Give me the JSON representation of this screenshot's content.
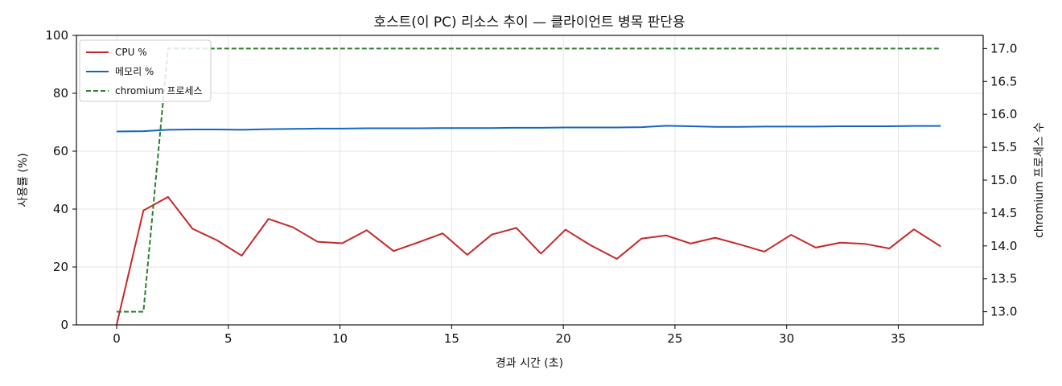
{
  "chart_data": {
    "type": "line",
    "title": "호스트(이 PC) 리소스 추이 — 클라이언트 병목 판단용",
    "xlabel": "경과 시간 (초)",
    "ylabel": "사용률 (%)",
    "y2label": "chromium 프로세스 수",
    "xlim": [
      -1.8,
      38.8
    ],
    "ylim": [
      0,
      100
    ],
    "y2lim": [
      12.8,
      17.2
    ],
    "xticks": [
      0,
      5,
      10,
      15,
      20,
      25,
      30,
      35
    ],
    "yticks": [
      0,
      20,
      40,
      60,
      80,
      100
    ],
    "y2ticks": [
      13.0,
      13.5,
      14.0,
      14.5,
      15.0,
      15.5,
      16.0,
      16.5,
      17.0
    ],
    "grid": true,
    "legend_position": "top-left",
    "x": [
      0,
      1.2,
      2.3,
      3.4,
      4.5,
      5.6,
      6.8,
      7.9,
      9.0,
      10.1,
      11.2,
      12.4,
      13.5,
      14.6,
      15.7,
      16.8,
      17.9,
      19.0,
      20.1,
      21.2,
      22.4,
      23.5,
      24.6,
      25.7,
      26.8,
      27.9,
      29.0,
      30.2,
      31.3,
      32.4,
      33.5,
      34.6,
      35.7,
      36.9
    ],
    "series": [
      {
        "name": "CPU %",
        "axis": "left",
        "color": "#c62828",
        "dash": "solid",
        "values": [
          0,
          39.5,
          44.2,
          33.2,
          29.2,
          23.9,
          36.6,
          33.7,
          28.7,
          28.2,
          32.7,
          25.5,
          28.5,
          31.6,
          24.2,
          31.2,
          33.5,
          24.6,
          32.9,
          27.6,
          22.8,
          29.8,
          30.9,
          28.1,
          30.1,
          27.8,
          25.3,
          31.1,
          26.7,
          28.4,
          28.0,
          26.4,
          33.0,
          27.1
        ]
      },
      {
        "name": "메모리 %",
        "axis": "left",
        "color": "#1565c0",
        "dash": "solid",
        "values": [
          66.8,
          66.9,
          67.4,
          67.5,
          67.5,
          67.4,
          67.6,
          67.7,
          67.8,
          67.8,
          67.9,
          67.9,
          67.9,
          68.0,
          68.0,
          68.0,
          68.1,
          68.1,
          68.2,
          68.2,
          68.2,
          68.3,
          68.8,
          68.6,
          68.4,
          68.4,
          68.5,
          68.5,
          68.5,
          68.6,
          68.6,
          68.6,
          68.7,
          68.7
        ]
      },
      {
        "name": "chromium 프로세스",
        "axis": "right",
        "color": "#2e7d32",
        "dash": "dashed",
        "values": [
          13,
          13,
          17,
          17,
          17,
          17,
          17,
          17,
          17,
          17,
          17,
          17,
          17,
          17,
          17,
          17,
          17,
          17,
          17,
          17,
          17,
          17,
          17,
          17,
          17,
          17,
          17,
          17,
          17,
          17,
          17,
          17,
          17,
          17
        ]
      }
    ]
  }
}
